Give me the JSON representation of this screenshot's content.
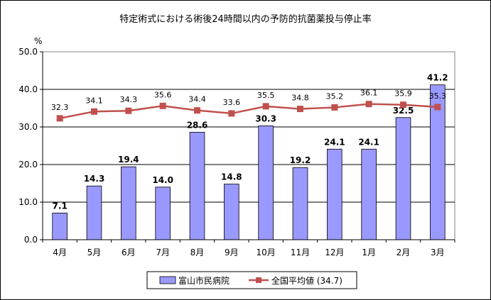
{
  "chart_data": {
    "type": "bar",
    "title": "特定術式における術後24時間以内の予防的抗菌薬投与停止率",
    "ylabel": "%",
    "ylim": [
      0,
      50
    ],
    "yticks": [
      "0.0",
      "10.0",
      "20.0",
      "30.0",
      "40.0",
      "50.0"
    ],
    "ytick_values": [
      0,
      10,
      20,
      30,
      40,
      50
    ],
    "categories": [
      "4月",
      "5月",
      "6月",
      "7月",
      "8月",
      "9月",
      "10月",
      "11月",
      "12月",
      "1月",
      "2月",
      "3月"
    ],
    "series": [
      {
        "name": "富山市民病院",
        "kind": "bar",
        "color": "#9999FF",
        "values": [
          7.1,
          14.3,
          19.4,
          14.0,
          28.6,
          14.8,
          30.3,
          19.2,
          24.1,
          24.1,
          32.5,
          41.2
        ],
        "labels": [
          "7.1",
          "14.3",
          "19.4",
          "14.0",
          "28.6",
          "14.8",
          "30.3",
          "19.2",
          "24.1",
          "24.1",
          "32.5",
          "41.2"
        ]
      },
      {
        "name": "全国平均値 (34.7)",
        "kind": "line",
        "color": "#C0504D",
        "values": [
          32.3,
          34.1,
          34.3,
          35.6,
          34.4,
          33.6,
          35.5,
          34.8,
          35.2,
          36.1,
          35.9,
          35.3
        ],
        "labels": [
          "32.3",
          "34.1",
          "34.3",
          "35.6",
          "34.4",
          "33.6",
          "35.5",
          "34.8",
          "35.2",
          "36.1",
          "35.9",
          "35.3"
        ]
      }
    ],
    "grid": true,
    "legend": "bottom"
  }
}
